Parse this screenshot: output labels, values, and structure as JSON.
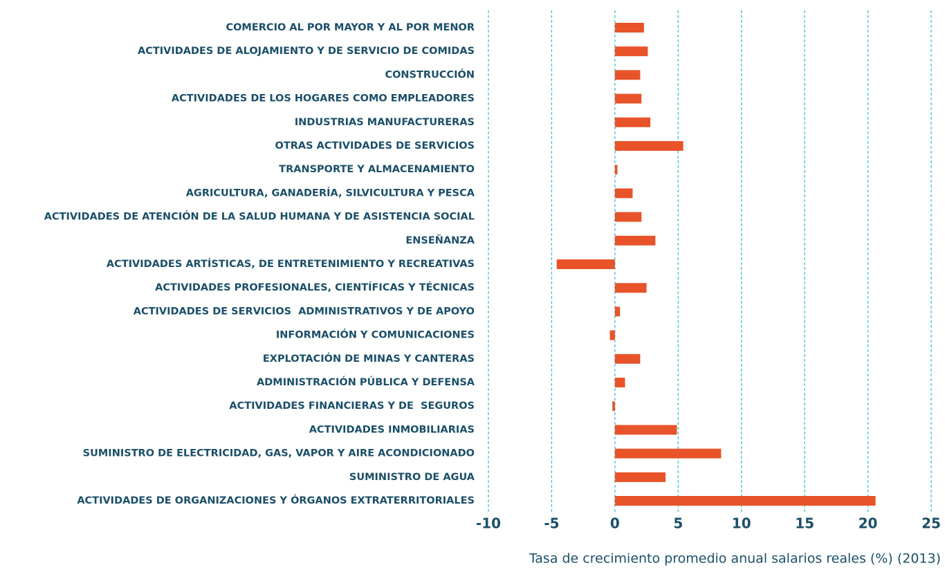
{
  "chart_data": {
    "type": "barh",
    "x_label": "Tasa de crecimiento promedio anual salarios reales (%) (2013)",
    "categories": [
      "COMERCIO AL POR MAYOR Y AL POR MENOR",
      "ACTIVIDADES DE ALOJAMIENTO Y DE SERVICIO DE COMIDAS",
      "CONSTRUCCIÓN",
      "ACTIVIDADES DE LOS HOGARES COMO EMPLEADORES",
      "INDUSTRIAS MANUFACTURERAS",
      "OTRAS ACTIVIDADES DE SERVICIOS",
      "TRANSPORTE Y ALMACENAMIENTO",
      "AGRICULTURA, GANADERÍA, SILVICULTURA Y PESCA",
      "ACTIVIDADES DE ATENCIÓN DE LA SALUD HUMANA Y DE ASISTENCIA SOCIAL",
      "ENSEÑANZA",
      "ACTIVIDADES ARTÍSTICAS, DE ENTRETENIMIENTO Y RECREATIVAS",
      "ACTIVIDADES PROFESIONALES, CIENTÍFICAS Y TÉCNICAS",
      "ACTIVIDADES DE SERVICIOS  ADMINISTRATIVOS Y DE APOYO",
      "INFORMACIÓN Y COMUNICACIONES",
      "EXPLOTACIÓN DE MINAS Y CANTERAS",
      "ADMINISTRACIÓN PÚBLICA Y DEFENSA",
      "ACTIVIDADES FINANCIERAS Y DE  SEGUROS",
      "ACTIVIDADES INMOBILIARIAS",
      "SUMINISTRO DE ELECTRICIDAD, GAS, VAPOR Y AIRE ACONDICIONADO",
      "SUMINISTRO DE AGUA",
      "ACTIVIDADES DE ORGANIZACIONES Y ÓRGANOS EXTRATERRITORIALES"
    ],
    "values": [
      2.3,
      2.6,
      2.0,
      2.1,
      2.8,
      5.4,
      0.2,
      1.4,
      2.1,
      3.2,
      -4.6,
      2.5,
      0.4,
      -0.4,
      2.0,
      0.8,
      -0.2,
      4.9,
      8.4,
      4.0,
      20.6
    ],
    "color": "#e8532a",
    "grid_color": "#3bbfd0",
    "xlim": [
      -10,
      25
    ],
    "xticks": [
      -10,
      -5,
      0,
      5,
      10,
      15,
      20,
      25
    ],
    "grid": true
  }
}
